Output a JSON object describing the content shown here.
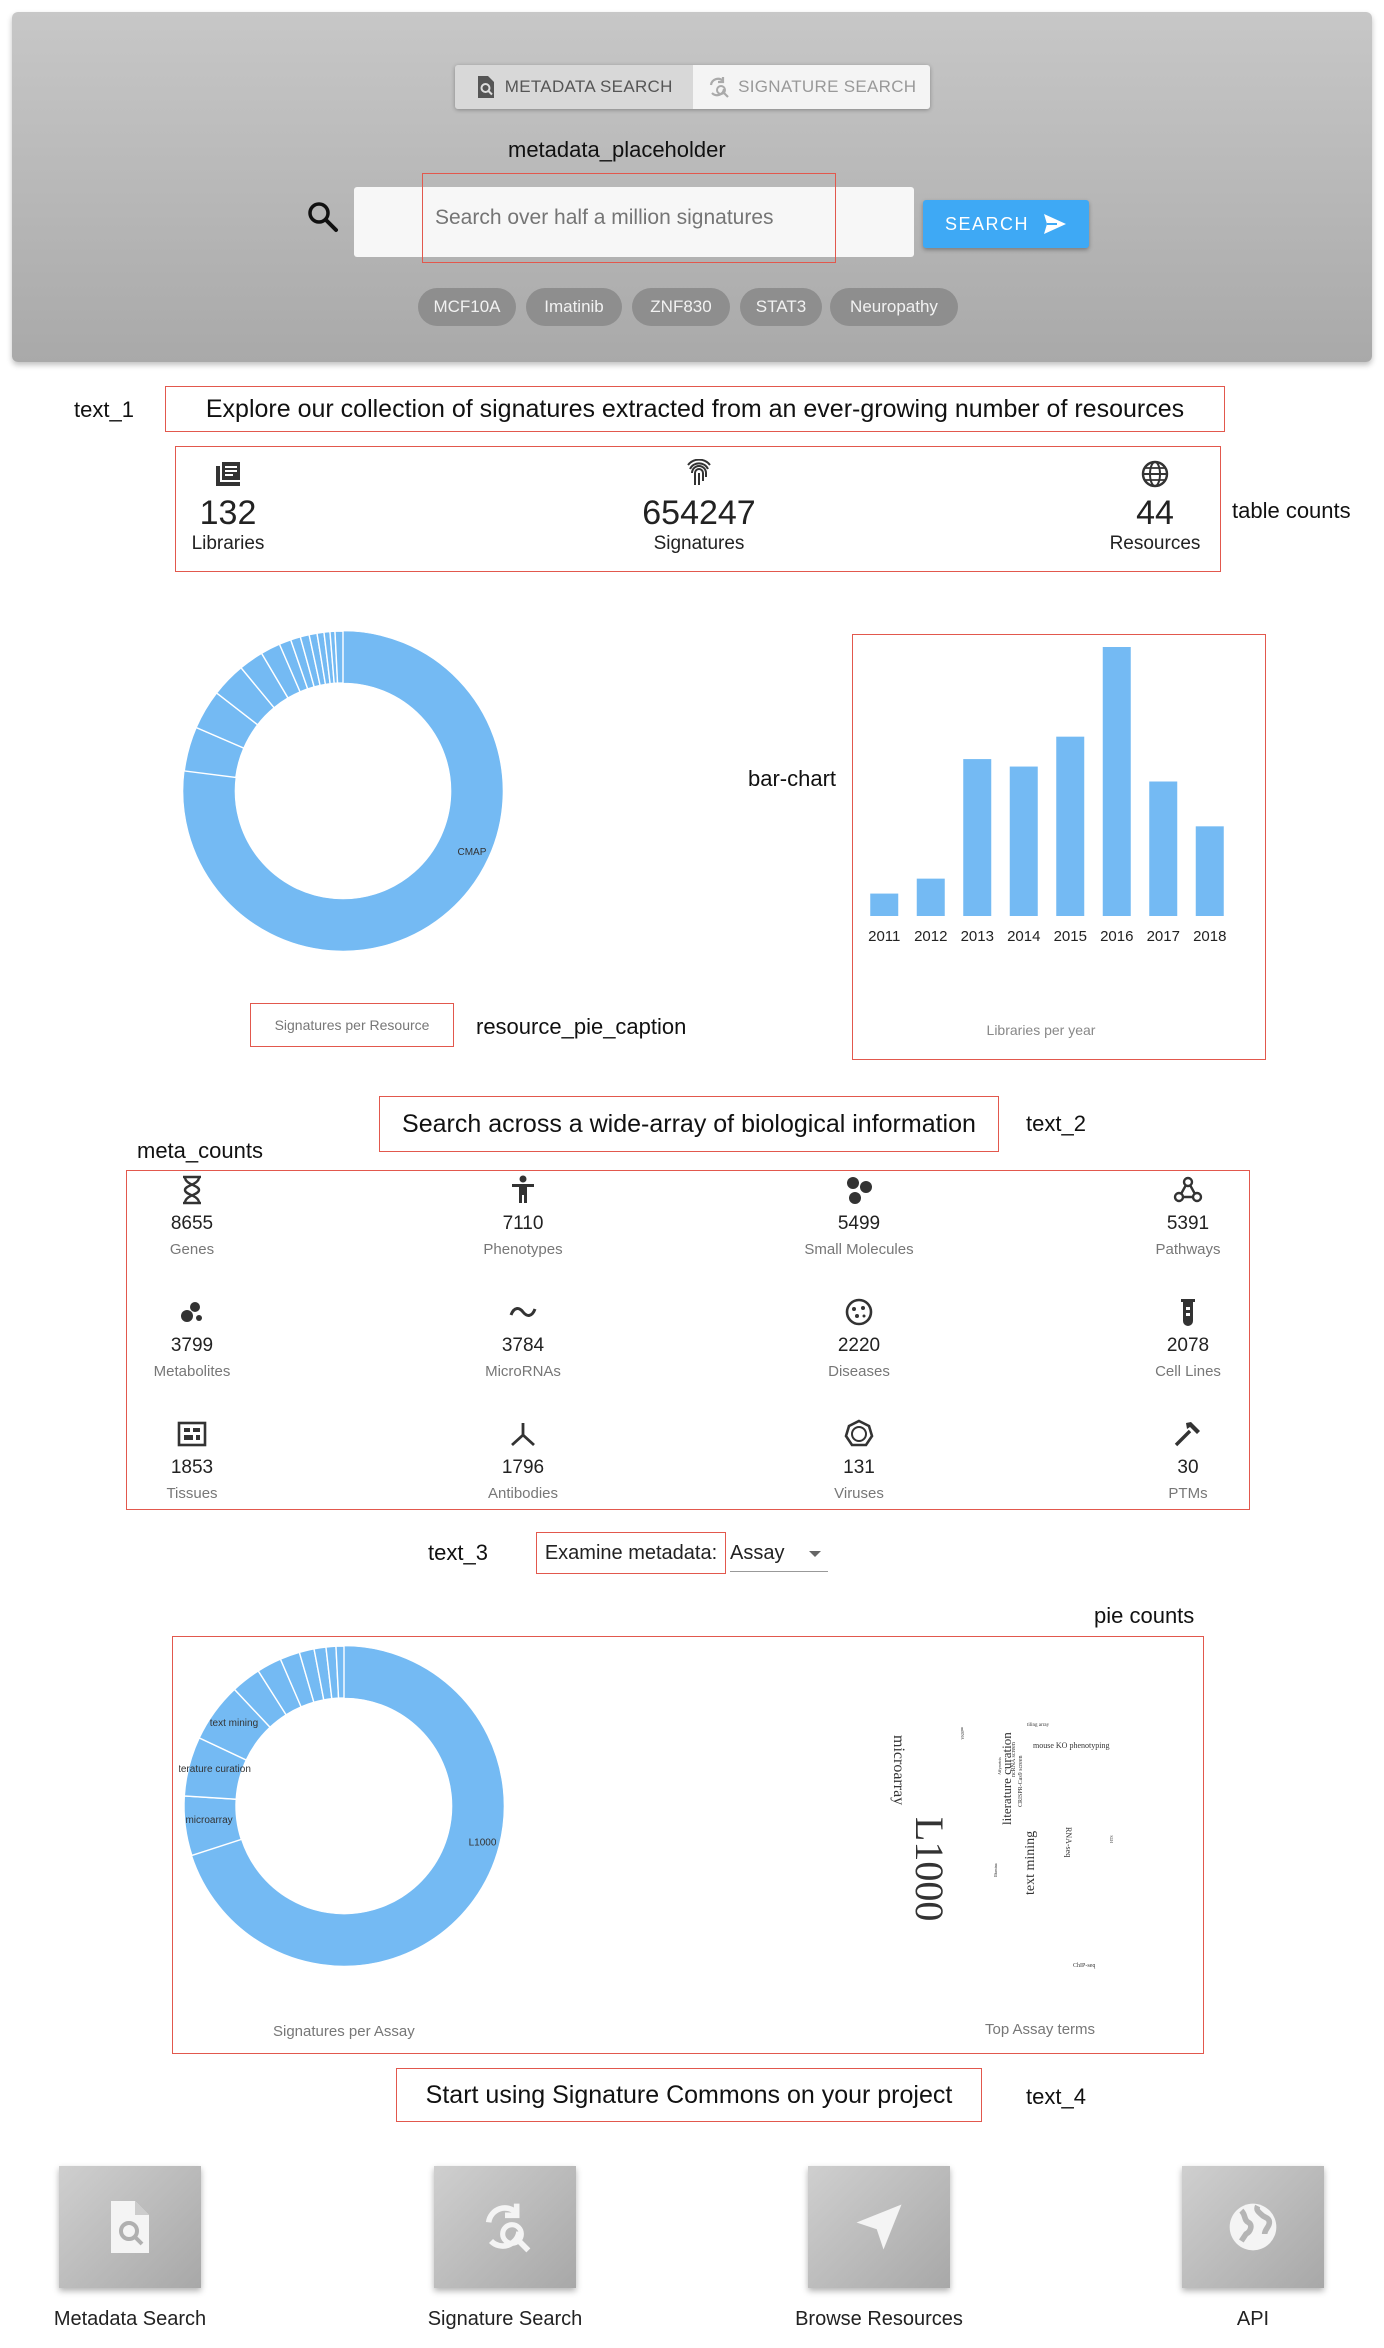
{
  "search": {
    "tabs": [
      {
        "label": "METADATA SEARCH",
        "active": true
      },
      {
        "label": "SIGNATURE SEARCH",
        "active": false
      }
    ],
    "annotation": "metadata_placeholder",
    "placeholder": "Search over half a million signatures",
    "button_label": "SEARCH",
    "chips": [
      "MCF10A",
      "Imatinib",
      "ZNF830",
      "STAT3",
      "Neuropathy"
    ]
  },
  "annotations": {
    "text_1": "text_1",
    "table_counts": "table counts",
    "bar_chart": "bar-chart",
    "resource_pie_caption": "resource_pie_caption",
    "text_2": "text_2",
    "meta_counts": "meta_counts",
    "text_3": "text_3",
    "pie_counts": "pie counts",
    "text_4": "text_4"
  },
  "headings": {
    "explore": "Explore our collection of signatures extracted from an ever-growing number of resources",
    "search_across": "Search across a wide-array of biological information",
    "examine": "Examine metadata:",
    "start": "Start using Signature Commons on your project"
  },
  "table_counts": [
    {
      "icon": "library-books-icon",
      "value": "132",
      "label": "Libraries"
    },
    {
      "icon": "fingerprint-icon",
      "value": "654247",
      "label": "Signatures"
    },
    {
      "icon": "globe-icon",
      "value": "44",
      "label": "Resources"
    }
  ],
  "meta_counts": [
    {
      "icon": "dna-icon",
      "value": "8655",
      "label": "Genes"
    },
    {
      "icon": "person-icon",
      "value": "7110",
      "label": "Phenotypes"
    },
    {
      "icon": "molecule-icon",
      "value": "5499",
      "label": "Small Molecules"
    },
    {
      "icon": "pathway-icon",
      "value": "5391",
      "label": "Pathways"
    },
    {
      "icon": "metabolite-icon",
      "value": "3799",
      "label": "Metabolites"
    },
    {
      "icon": "tilde-icon",
      "value": "3784",
      "label": "MicroRNAs"
    },
    {
      "icon": "disease-icon",
      "value": "2220",
      "label": "Diseases"
    },
    {
      "icon": "test-tube-icon",
      "value": "2078",
      "label": "Cell Lines"
    },
    {
      "icon": "tissue-icon",
      "value": "1853",
      "label": "Tissues"
    },
    {
      "icon": "antibody-icon",
      "value": "1796",
      "label": "Antibodies"
    },
    {
      "icon": "virus-icon",
      "value": "131",
      "label": "Viruses"
    },
    {
      "icon": "hammer-icon",
      "value": "30",
      "label": "PTMs"
    }
  ],
  "metadata_select": {
    "value": "Assay"
  },
  "chart_data": [
    {
      "type": "pie",
      "caption": "Signatures per Resource",
      "labels": [
        "CMAP",
        "",
        "",
        "",
        "",
        "",
        "",
        "",
        "",
        "",
        "",
        "",
        "",
        ""
      ],
      "values": [
        77,
        4.5,
        4,
        3.5,
        2.5,
        2,
        1.2,
        1,
        0.9,
        0.8,
        0.7,
        0.6,
        0.5,
        0.8
      ],
      "donut": true
    },
    {
      "type": "bar",
      "caption": "Libraries per year",
      "categories": [
        "2011",
        "2012",
        "2013",
        "2014",
        "2015",
        "2016",
        "2017",
        "2018"
      ],
      "values": [
        3,
        5,
        21,
        20,
        24,
        36,
        18,
        12
      ],
      "ylim": [
        0,
        36
      ],
      "grid": false
    },
    {
      "type": "pie",
      "caption": "Signatures per Assay",
      "labels": [
        "L1000",
        "microarray",
        "literature curation",
        "text mining",
        "",
        "",
        "",
        "",
        "",
        "",
        ""
      ],
      "values": [
        70,
        6,
        6,
        6,
        3,
        2.5,
        2,
        1.5,
        1.2,
        1,
        0.8
      ],
      "donut": true
    }
  ],
  "wordcloud": {
    "caption": "Top Assay terms",
    "words": [
      "L1000",
      "microarray",
      "literature curation",
      "text mining",
      "mouse KO phenotyping",
      "RNA-seq",
      "ChIP-seq",
      "CRISPR-Cas9 screen",
      "ncRNA screen",
      "tiling array",
      "HTS",
      "miRNA",
      "Affymetrix",
      "Illumina"
    ]
  },
  "colors": {
    "accent": "#3ea9f5",
    "chart": "#74baf3",
    "annotation_box": "#e2584d"
  },
  "actions": [
    {
      "icon": "metadata-search-icon",
      "label": "Metadata Search"
    },
    {
      "icon": "signature-search-icon",
      "label": "Signature Search"
    },
    {
      "icon": "send-icon",
      "label": "Browse Resources"
    },
    {
      "icon": "globe-icon",
      "label": "API"
    }
  ]
}
